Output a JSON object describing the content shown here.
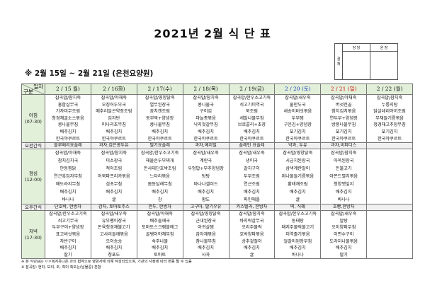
{
  "title": "2021년 2월 식 단 표",
  "approval": {
    "side_label": "결 재",
    "cols": [
      "담 당",
      "원 장"
    ]
  },
  "subtitle": "※ 2월 15일 ~ 2월 21일 (은천요양원)",
  "table": {
    "corner_top": "일자",
    "corner_bottom": "구분",
    "dates": [
      {
        "label": "2 / 15 월)",
        "color": "#111111"
      },
      {
        "label": "2 / 16화)",
        "color": "#111111"
      },
      {
        "label": "2 / 17(수)",
        "color": "#111111"
      },
      {
        "label": "2 / 18(목)",
        "color": "#111111"
      },
      {
        "label": "2 / 19(금)",
        "color": "#111111"
      },
      {
        "label": "2 / 20 (토)",
        "color": "#1f3fbf"
      },
      {
        "label": "2 / 21 (일)",
        "color": "#d01010"
      },
      {
        "label": "2 / 22 (월)",
        "color": "#111111"
      }
    ],
    "rows": [
      {
        "type": "meal",
        "cls": "breakfast",
        "label": "아침",
        "time": "(07:30)",
        "cells": [
          [
            "잡곡밥/참치죽",
            "홍합살무국",
            "가자미무조림",
            "청경채굴소스볶음",
            "콩나물무침",
            "배추김치",
            "한국야쿠르트"
          ],
          [
            "잡곡밥/야채죽",
            "오징어두부국",
            "메추리알곤약장조림",
            "김자반",
            "미나리초무침",
            "배추김치",
            "한국야쿠르트"
          ],
          [
            "잡곡밥/영양닭죽",
            "열무된장국",
            "꽁치캔조림",
            "동부묵+양념장",
            "콩나물무침",
            "배추김치",
            "한국야쿠르트"
          ],
          [
            "잡곡밥/참치죽",
            "콩나물국",
            "구이김",
            "마늘종볶음",
            "낙지젓갈무침",
            "배추김치",
            "한국야쿠르트"
          ],
          [
            "잡곡밥/한우소고기죽",
            "쇠고기미역국",
            "묵조림",
            "세발나물무침",
            "브로콜리+초장",
            "배추김치",
            "한국야쿠르트"
          ],
          [
            "잡곡밥/새우죽",
            "물만두국",
            "새송이버섯볶음",
            "두부찜",
            "구운김+양념장",
            "포기김치",
            "한국야쿠르트"
          ],
          [
            "잡곡밥/야채죽",
            "버섯전골",
            "참치김치볶음",
            "연두부+양념장",
            "방풍나물무침",
            "포기김치",
            "한국야쿠르트"
          ],
          [
            "잡곡밥/참치죽",
            "누룽지탕",
            "닭살데리야끼조림",
            "무채들기름볶음",
            "청경채고추장무침",
            "포기김치",
            "한국야쿠르트"
          ]
        ]
      },
      {
        "type": "snack",
        "label": "오전간식",
        "cells": [
          "블루베리요플레",
          "과자,검은콩두유",
          "딸기요플레",
          "과자,베지밀",
          "플레인 요플레",
          "약과, 두유",
          "과자,비피더스",
          ""
        ]
      },
      {
        "type": "meal",
        "cls": "lunch",
        "label": "점심",
        "time": "(12:00)",
        "cells": [
          [
            "잡곡밥/야채죽",
            "참치김치국",
            "안동찜닭",
            "연근흑임자무침",
            "배도라지무침",
            "배추김치",
            "바나나"
          ],
          [
            "잡곡밥/참치죽",
            "미소장국",
            "적어조림",
            "어묵파프리카볶음",
            "섬초무침",
            "배추김치",
            "귤"
          ],
          [
            "잡곡밥/한우소고기죽",
            "해물순두부찌개",
            "돈사태단호박조림",
            "느타리볶음",
            "봄동달래무침",
            "배추김치",
            "감"
          ],
          [
            "잡곡밥/새우죽",
            "계란국",
            "우엉밥+부추양념장",
            "탕탕",
            "바나나샐러드",
            "배추김치",
            "황도"
          ],
          [
            "잡곡밥/새우죽",
            "냉이국",
            "갈치구이",
            "두부조림",
            "연근조림",
            "배추김치",
            "파인애플"
          ],
          [
            "잡곡밥/영양닭죽",
            "시금치된장국",
            "삼색계란말이",
            "취나물들기름볶음",
            "황태채조림",
            "배추김치",
            "귤"
          ],
          [
            "잡곡밥/참치죽",
            "아욱된장국",
            "돈불고기",
            "아몬드멸치볶음",
            "청양깻잎지",
            "배추김치",
            "바나나"
          ],
          [
            "",
            "",
            "",
            "",
            "",
            "",
            ""
          ]
        ]
      },
      {
        "type": "snack",
        "label": "오후간식",
        "cells": [
          "단호박, 한방차",
          "감자, 토마토주스",
          "만두, 한방차",
          "고구마, 딸기우유",
          "카스텔라, 한방차",
          "떡, 식혜",
          "호빵,한방차",
          ""
        ]
      },
      {
        "type": "meal",
        "cls": "dinner",
        "label": "저녁",
        "time": "(17:30)",
        "cells": [
          [
            "잡곡밥/한우소고기죽",
            "쇠고기무국",
            "두부구이+양념장",
            "표고버섯볶음",
            "자반구이",
            "배추김치",
            "딸기"
          ],
          [
            "잡곡밥/새우죽",
            "유부팽이장국",
            "돈육청경채불고기",
            "고사리들깨볶음",
            "오이송송",
            "배추김치",
            "청포도"
          ],
          [
            "잡곡밥/야채죽",
            "배추들깨국",
            "토마토스크램블에그",
            "골뱅이야채무침",
            "숙주나물",
            "배추김치",
            "토마토"
          ],
          [
            "잡곡밥/영양닭죽",
            "근대된장국",
            "아귀살찜",
            "감자채볶음",
            "참나물무침",
            "배추김치",
            "사과"
          ],
          [
            "잡곡밥/참치죽",
            "바지락살무국",
            "오리주물럭",
            "호박양파볶음",
            "상추겉절이",
            "배추김치",
            "귤"
          ],
          [
            "잡곡밥/한우소고기죽",
            "동태탕",
            "돼지주물럭불고기",
            "미역줄기볶음",
            "얼갈이된장무침",
            "배추김치",
            "바나나"
          ],
          [
            "잡곡밥/새우죽",
            "알탕",
            "오이양파무침",
            "이면수구이",
            "도라지나물볶음",
            "배추김치",
            "딸기"
          ],
          [
            "",
            "",
            "",
            "",
            "",
            "",
            ""
          ]
        ]
      }
    ]
  },
  "notes": [
    "※ 본 식단표는 ㅇㅇ복지유니온 과의 협약으로 영양사에 의해 작성되었으며, 기관의 사정에 따라 변동 될 수 있음",
    "※ 잡곡밥: 현미, 보리, 조, 흑미 혹또는(남물콩) 혼합"
  ],
  "colors": {
    "header_bg": "#e2efd9",
    "saturday": "#1f3fbf",
    "sunday": "#d01010"
  }
}
